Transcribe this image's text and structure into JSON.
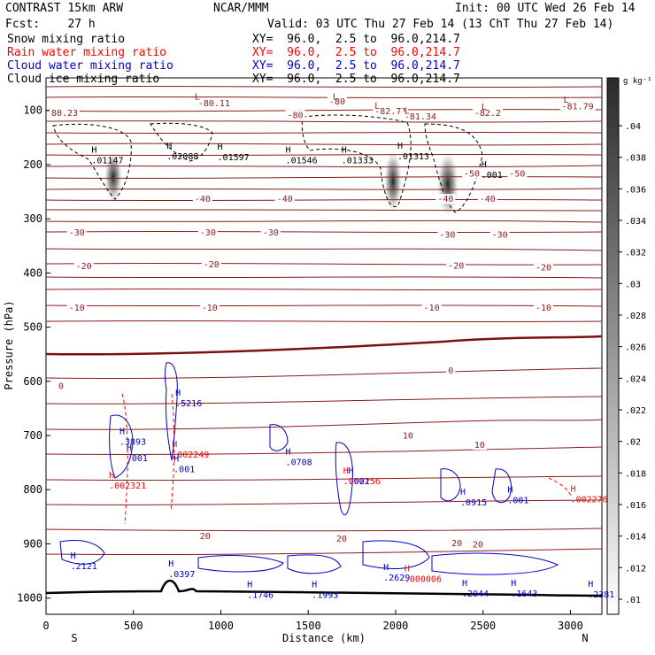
{
  "header": {
    "left_lines": [
      "CONTRAST 15km ARW",
      "Fcst:    27 h"
    ],
    "center_top": "NCAR/MMM",
    "init": "Init: 00 UTC Wed 26 Feb 14",
    "valid": "Valid: 03 UTC Thu 27 Feb 14 (13 ChT Thu 27 Feb 14)"
  },
  "fields": [
    {
      "name": "Snow mixing ratio",
      "xy": "",
      "color": "#000000"
    },
    {
      "name": "Rain water mixing ratio",
      "xy": "XY=  96.0,  2.5 to  96.0,214.7",
      "color": "#ff0000"
    },
    {
      "name": "Cloud water mixing ratio",
      "xy": "XY=  96.0,  2.5 to  96.0,214.7",
      "color": "#0000cc"
    },
    {
      "name": "Cloud ice mixing ratio",
      "xy": "XY=  96.0,  2.5 to  96.0,214.7",
      "color": "#000000"
    }
  ],
  "snow_xy": "XY=  96.0,  2.5 to  96.0,214.7",
  "colors": {
    "temperature": "#8b1a1a",
    "zero_line": "#7a1010",
    "rain": "#ff0000",
    "cloud_water": "#0000cc",
    "ice": "#000000",
    "terrain": "#000000"
  },
  "chart_data": {
    "type": "cross-section",
    "xlabel": "Distance (km)",
    "ylabel": "Pressure (hPa)",
    "xlim": [
      0,
      3180
    ],
    "ylim_pressure_top_to_bottom": [
      40,
      1030
    ],
    "x_ticks": [
      "0",
      "500",
      "1000",
      "1500",
      "2000",
      "2500",
      "3000"
    ],
    "y_ticks": [
      "100",
      "200",
      "300",
      "400",
      "500",
      "600",
      "700",
      "800",
      "900",
      "1000"
    ],
    "endpoints": {
      "left": "S",
      "right": "N"
    },
    "colorbar": {
      "unit": "g kg⁻¹",
      "ticks": [
        ".01",
        ".012",
        ".014",
        ".016",
        ".018",
        ".02",
        ".022",
        ".024",
        ".026",
        ".028",
        ".03",
        ".032",
        ".034",
        ".036",
        ".038",
        ".04"
      ]
    },
    "temperature_labels": [
      {
        "text": "-80.11",
        "x": 870,
        "p": 92
      },
      {
        "text": "-80",
        "x": 1620,
        "p": 89
      },
      {
        "text": "-82.71",
        "x": 1880,
        "p": 107
      },
      {
        "text": "-81.34",
        "x": 2050,
        "p": 117
      },
      {
        "text": "-82.2",
        "x": 2450,
        "p": 110
      },
      {
        "text": "-81.79",
        "x": 2950,
        "p": 98
      },
      {
        "text": "80.23",
        "x": 30,
        "p": 110
      },
      {
        "text": "-80",
        "x": 1380,
        "p": 114
      },
      {
        "text": "-50",
        "x": 2390,
        "p": 222
      },
      {
        "text": "-50",
        "x": 2650,
        "p": 222
      },
      {
        "text": "-40",
        "x": 850,
        "p": 269
      },
      {
        "text": "-40",
        "x": 1320,
        "p": 269
      },
      {
        "text": "-40",
        "x": 2240,
        "p": 269
      },
      {
        "text": "-40",
        "x": 2480,
        "p": 269
      },
      {
        "text": "-30",
        "x": 130,
        "p": 331
      },
      {
        "text": "-30",
        "x": 880,
        "p": 331
      },
      {
        "text": "-30",
        "x": 1240,
        "p": 331
      },
      {
        "text": "-30",
        "x": 2250,
        "p": 335
      },
      {
        "text": "-30",
        "x": 2550,
        "p": 335
      },
      {
        "text": "-20",
        "x": 170,
        "p": 393
      },
      {
        "text": "-20",
        "x": 900,
        "p": 390
      },
      {
        "text": "-20",
        "x": 2300,
        "p": 392
      },
      {
        "text": "-20",
        "x": 2800,
        "p": 395
      },
      {
        "text": "-10",
        "x": 130,
        "p": 470
      },
      {
        "text": "-10",
        "x": 890,
        "p": 470
      },
      {
        "text": "-10",
        "x": 2160,
        "p": 470
      },
      {
        "text": "-10",
        "x": 2800,
        "p": 470
      },
      {
        "text": "0",
        "x": 70,
        "p": 614
      },
      {
        "text": "0",
        "x": 2300,
        "p": 586
      },
      {
        "text": "10",
        "x": 2040,
        "p": 706
      },
      {
        "text": "10",
        "x": 2450,
        "p": 723
      },
      {
        "text": "20",
        "x": 880,
        "p": 891
      },
      {
        "text": "20",
        "x": 1660,
        "p": 896
      },
      {
        "text": "20",
        "x": 2320,
        "p": 904
      },
      {
        "text": "20",
        "x": 2440,
        "p": 907
      }
    ],
    "ice_maxima": [
      {
        "text": ".01147",
        "x": 260,
        "p": 198
      },
      {
        "text": ".02088",
        "x": 690,
        "p": 190
      },
      {
        "text": ".01597",
        "x": 980,
        "p": 192
      },
      {
        "text": ".01546",
        "x": 1370,
        "p": 198
      },
      {
        "text": ".01333",
        "x": 1690,
        "p": 198
      },
      {
        "text": ".01313",
        "x": 2010,
        "p": 190
      },
      {
        "text": ".001",
        "x": 2490,
        "p": 225
      }
    ],
    "rain_maxima": [
      {
        "text": ".002249",
        "x": 720,
        "p": 741
      },
      {
        "text": ".002321",
        "x": 360,
        "p": 798
      },
      {
        "text": ".002256",
        "x": 1700,
        "p": 790
      },
      {
        "text": ".002276",
        "x": 3000,
        "p": 823
      },
      {
        "text": ".000006",
        "x": 2050,
        "p": 970
      }
    ],
    "cloud_maxima": [
      {
        "text": ".5216",
        "x": 740,
        "p": 646
      },
      {
        "text": ".3893",
        "x": 420,
        "p": 717
      },
      {
        "text": ".001",
        "x": 460,
        "p": 747
      },
      {
        "text": ".001",
        "x": 730,
        "p": 768
      },
      {
        "text": ".0708",
        "x": 1370,
        "p": 755
      },
      {
        "text": ".0915",
        "x": 2370,
        "p": 829
      },
      {
        "text": ".001",
        "x": 2640,
        "p": 825
      },
      {
        "text": ".001",
        "x": 1730,
        "p": 790
      },
      {
        "text": ".2121",
        "x": 140,
        "p": 947
      },
      {
        "text": ".0397",
        "x": 700,
        "p": 961
      },
      {
        "text": ".1746",
        "x": 1150,
        "p": 1000
      },
      {
        "text": ".1993",
        "x": 1520,
        "p": 1000
      },
      {
        "text": ".2629",
        "x": 1930,
        "p": 968
      },
      {
        "text": ".2044",
        "x": 2380,
        "p": 997
      },
      {
        "text": ".1643",
        "x": 2660,
        "p": 997
      },
      {
        "text": ".2381",
        "x": 3100,
        "p": 999
      }
    ],
    "low_markers": [
      {
        "x": 850,
        "p": 80
      },
      {
        "x": 1640,
        "p": 80
      },
      {
        "x": 1880,
        "p": 97
      },
      {
        "x": 2050,
        "p": 106
      },
      {
        "x": 2490,
        "p": 99
      },
      {
        "x": 2960,
        "p": 86
      }
    ]
  }
}
